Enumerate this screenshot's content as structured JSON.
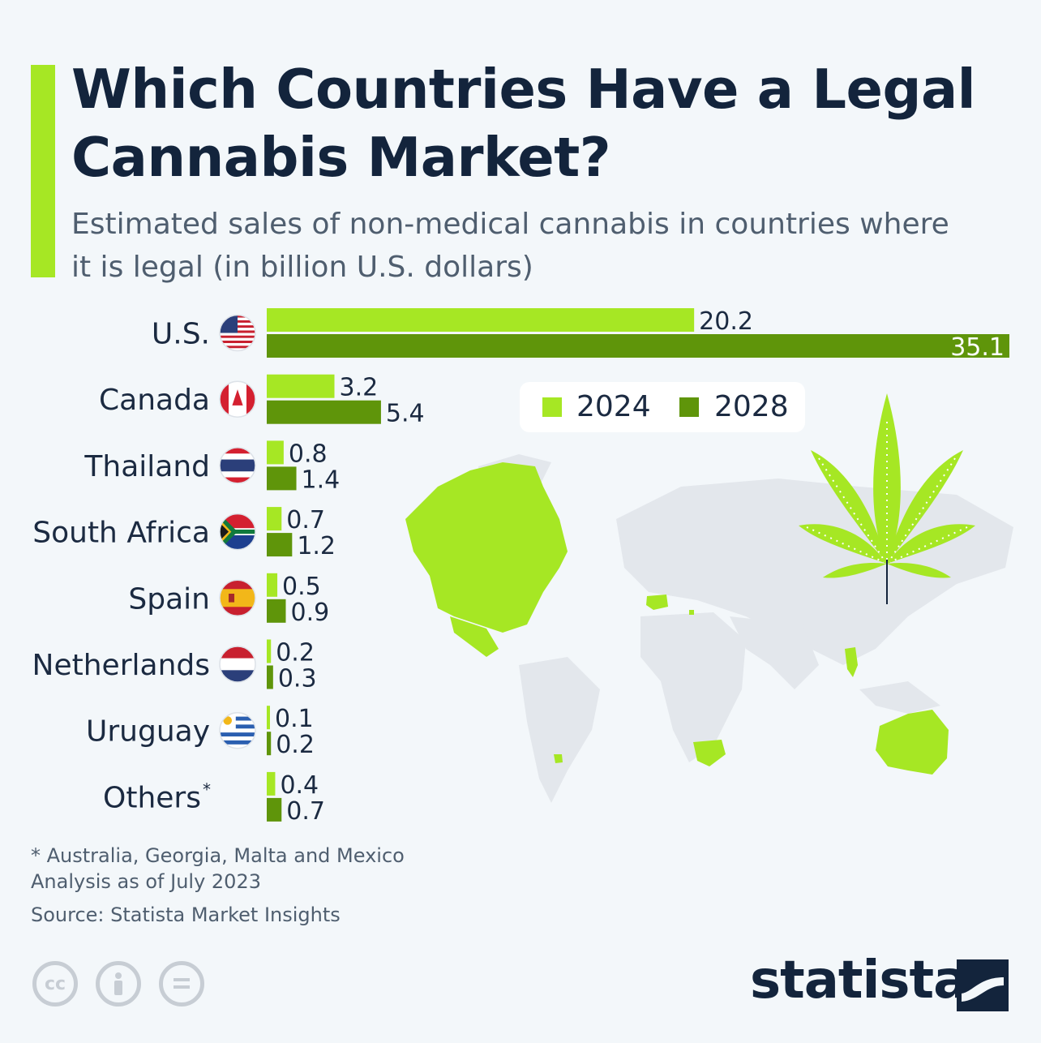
{
  "header": {
    "title": "Which Countries Have a Legal Cannabis Market?",
    "subtitle": "Estimated sales of non-medical cannabis in countries where it is legal (in billion U.S. dollars)"
  },
  "colors": {
    "accent": "#a6e724",
    "series_2024": "#a6e724",
    "series_2028": "#5f950a",
    "text_dark": "#13243c",
    "text_muted": "#4f5e6f",
    "map_base": "#e3e7ec"
  },
  "chart_data": {
    "type": "bar",
    "orientation": "horizontal",
    "title": "Which Countries Have a Legal Cannabis Market?",
    "subtitle": "Estimated sales of non-medical cannabis in countries where it is legal (in billion U.S. dollars)",
    "categories": [
      "U.S.",
      "Canada",
      "Thailand",
      "South Africa",
      "Spain",
      "Netherlands",
      "Uruguay",
      "Others*"
    ],
    "series": [
      {
        "name": "2024",
        "values": [
          20.2,
          3.2,
          0.8,
          0.7,
          0.5,
          0.2,
          0.1,
          0.4
        ]
      },
      {
        "name": "2028",
        "values": [
          35.1,
          5.4,
          1.4,
          1.2,
          0.9,
          0.3,
          0.2,
          0.7
        ]
      }
    ],
    "value_labels": {
      "2024": [
        "20.2",
        "3.2",
        "0.8",
        "0.7",
        "0.5",
        "0.2",
        "0.1",
        "0.4"
      ],
      "2028": [
        "35.1",
        "5.4",
        "1.4",
        "1.2",
        "0.9",
        "0.3",
        "0.2",
        "0.7"
      ]
    },
    "xlim": [
      0,
      35.1
    ],
    "legend": {
      "position": "right",
      "labels": [
        "2024",
        "2028"
      ]
    },
    "grid": false,
    "flags": [
      "us-flag-icon",
      "canada-flag-icon",
      "thailand-flag-icon",
      "south-africa-flag-icon",
      "spain-flag-icon",
      "netherlands-flag-icon",
      "uruguay-flag-icon",
      ""
    ]
  },
  "footer": {
    "note": "* Australia, Georgia, Malta and Mexico",
    "analysis": "Analysis as of July 2023",
    "source": "Source: Statista Market Insights",
    "license_icons": [
      "cc-icon",
      "attribution-icon",
      "no-derivatives-icon"
    ],
    "brand": "statista"
  }
}
